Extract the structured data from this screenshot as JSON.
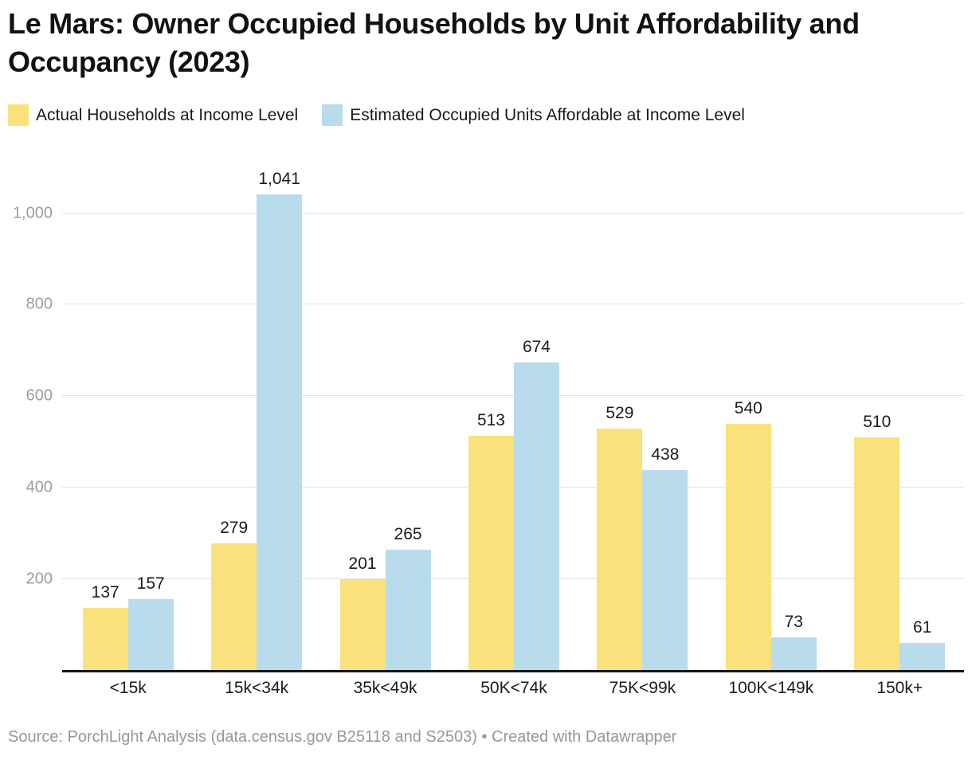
{
  "header": {
    "title": "Le Mars: Owner Occupied Households by Unit Affordability and Occupancy (2023)"
  },
  "legend": {
    "items": [
      {
        "label": "Actual Households at Income Level",
        "color": "#f9e17c"
      },
      {
        "label": "Estimated Occupied Units Affordable at Income Level",
        "color": "#b9dcec"
      }
    ]
  },
  "chart_data": {
    "type": "bar",
    "title": "Le Mars: Owner Occupied Households by Unit Affordability and Occupancy (2023)",
    "categories": [
      "<15k",
      "15k<34k",
      "35k<49k",
      "50K<74k",
      "75K<99k",
      "100K<149k",
      "150k+"
    ],
    "series": [
      {
        "name": "Actual Households at Income Level",
        "color": "#f9e17c",
        "values": [
          137,
          279,
          201,
          513,
          529,
          540,
          510
        ]
      },
      {
        "name": "Estimated Occupied Units Affordable at Income Level",
        "color": "#b9dcec",
        "values": [
          157,
          1041,
          265,
          674,
          438,
          73,
          61
        ]
      }
    ],
    "y_ticks": [
      200,
      400,
      600,
      800,
      1000
    ],
    "ylim": [
      0,
      1135
    ],
    "xlabel": "",
    "ylabel": "",
    "grid": true,
    "legend_position": "top",
    "value_labels": true
  },
  "footer": {
    "text": "Source: PorchLight Analysis (data.census.gov B25118 and S2503) • Created with Datawrapper"
  }
}
